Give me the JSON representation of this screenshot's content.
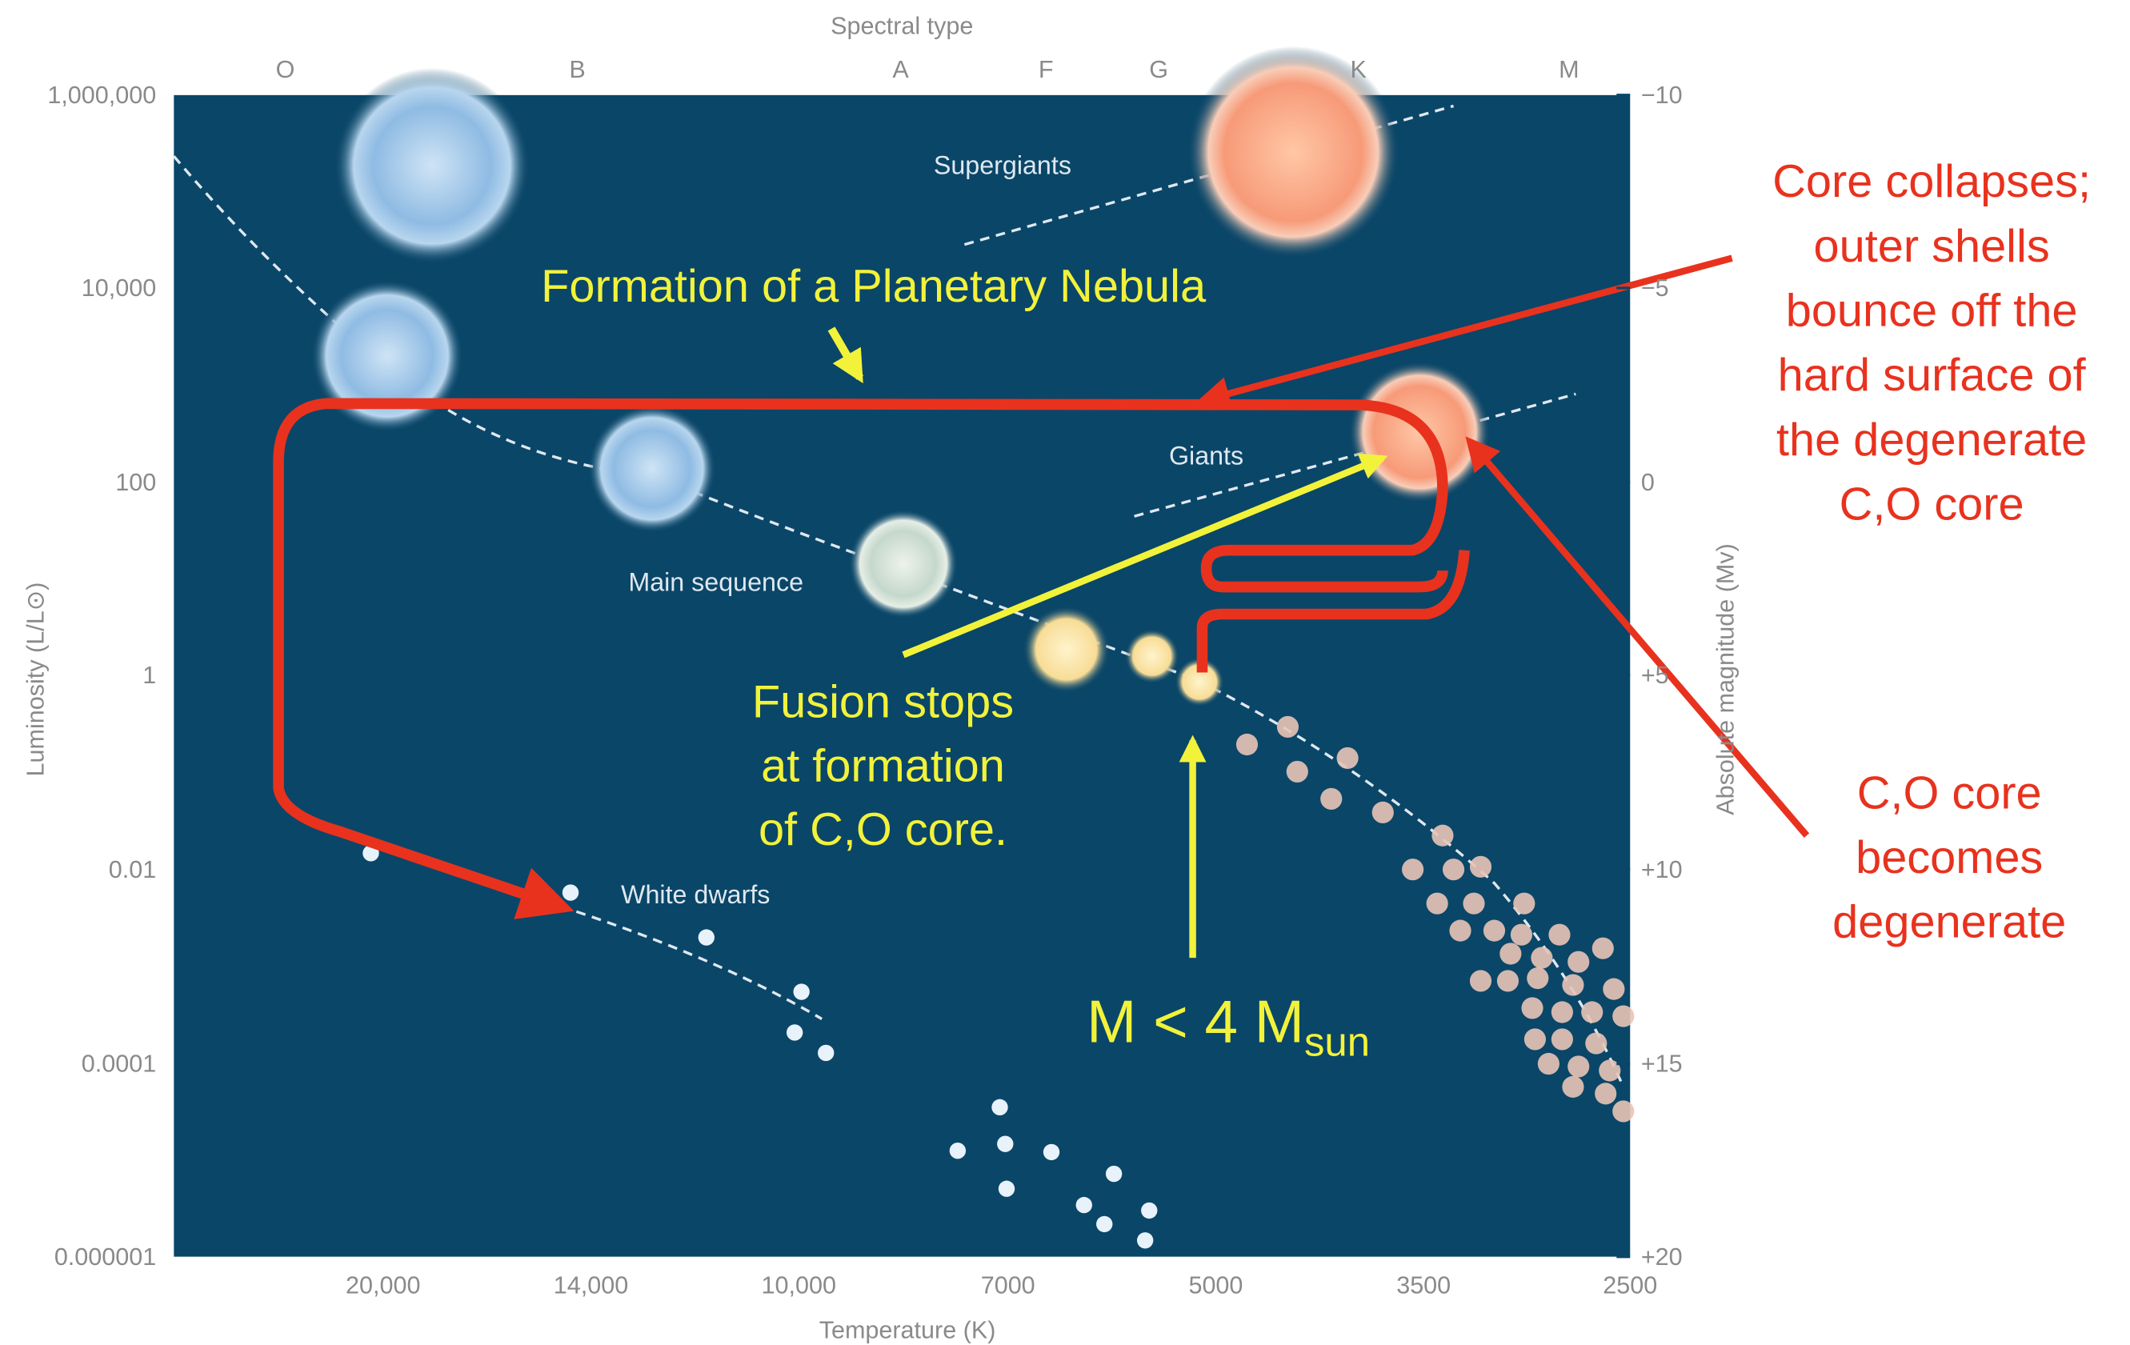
{
  "top_axis": {
    "title": "Spectral type",
    "labels": [
      "O",
      "B",
      "A",
      "F",
      "G",
      "K",
      "M"
    ]
  },
  "left_axis": {
    "title": "Luminosity (L/L⊙)",
    "ticks": [
      "1,000,000",
      "10,000",
      "100",
      "1",
      "0.01",
      "0.0001",
      "0.000001"
    ]
  },
  "right_axis": {
    "title": "Absolute magnitude (Mv)",
    "ticks": [
      "−10",
      "−5",
      "0",
      "+5",
      "+10",
      "+15",
      "+20"
    ]
  },
  "bottom_axis": {
    "title": "Temperature (K)",
    "ticks": [
      "20,000",
      "14,000",
      "10,000",
      "7000",
      "5000",
      "3500",
      "2500"
    ]
  },
  "regions": [
    "Supergiants",
    "Giants",
    "Main sequence",
    "White dwarfs"
  ],
  "annotations": {
    "planetary_nebula": "Formation of a Planetary Nebula",
    "fusion_stops": [
      "Fusion stops",
      "at formation",
      "of C,O core."
    ],
    "mass": {
      "text": "M < 4 M",
      "subscript": "sun"
    },
    "core_collapses": [
      "Core collapses;",
      "outer shells",
      "bounce off the",
      "hard surface of",
      "the degenerate",
      "C,O core"
    ],
    "core_degenerate": [
      "C,O core",
      "becomes",
      "degenerate"
    ]
  }
}
